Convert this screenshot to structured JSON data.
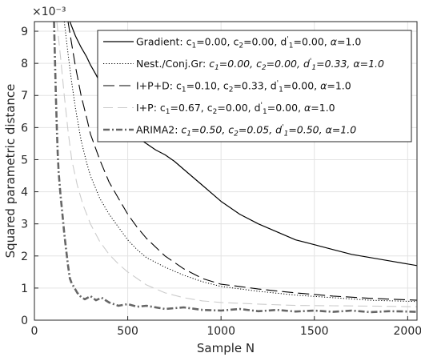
{
  "chart_data": {
    "type": "line",
    "title": "",
    "xlabel": "Sample N",
    "ylabel": "Squared parametric distance",
    "y_exponent_label": "×10⁻³",
    "xlim": [
      0,
      2050
    ],
    "ylim": [
      0,
      9.3
    ],
    "xticks": [
      0,
      500,
      1000,
      1500,
      2000
    ],
    "yticks": [
      0,
      1,
      2,
      3,
      4,
      5,
      6,
      7,
      8,
      9
    ],
    "grid": true,
    "legend_position": "top-right",
    "series": [
      {
        "name": "Gradient: c₁=0.00, c₂=0.00, d′₁=0.00, α=1.0",
        "legend": [
          {
            "t": "Gradient: c"
          },
          {
            "t": "1",
            "s": "sub"
          },
          {
            "t": "=0.00, c"
          },
          {
            "t": "2",
            "s": "sub"
          },
          {
            "t": "=0.00, d"
          },
          {
            "t": "'",
            "s": "sup"
          },
          {
            "t": "1",
            "s": "sub"
          },
          {
            "t": "=0.00, "
          },
          {
            "t": "α",
            "i": true
          },
          {
            "t": "=1.0"
          }
        ],
        "style": "solid",
        "color": "#000000",
        "width": 1.2,
        "x": [
          190,
          220,
          250,
          280,
          300,
          330,
          360,
          400,
          450,
          500,
          550,
          600,
          650,
          700,
          750,
          800,
          900,
          1000,
          1100,
          1200,
          1300,
          1400,
          1500,
          1600,
          1700,
          1800,
          1900,
          2050
        ],
        "y": [
          9.3,
          8.85,
          8.5,
          8.2,
          7.95,
          7.65,
          7.3,
          6.9,
          6.4,
          6.0,
          5.7,
          5.5,
          5.3,
          5.15,
          4.95,
          4.7,
          4.2,
          3.7,
          3.3,
          3.0,
          2.75,
          2.5,
          2.35,
          2.2,
          2.05,
          1.95,
          1.85,
          1.7
        ]
      },
      {
        "name": "Nest./Conj.Gr: c₁=0.00, c₂=0.00, d′₁=0.33, α=1.0",
        "legend": [
          {
            "t": "Nest./Conj.Gr: "
          },
          {
            "t": "c",
            "i": true
          },
          {
            "t": "1",
            "s": "sub",
            "i": true
          },
          {
            "t": "=0.00, ",
            "i": true
          },
          {
            "t": "c",
            "i": true
          },
          {
            "t": "2",
            "s": "sub",
            "i": true
          },
          {
            "t": "=0.00, ",
            "i": true
          },
          {
            "t": "d",
            "i": true
          },
          {
            "t": "'",
            "s": "sup",
            "i": true
          },
          {
            "t": "1",
            "s": "sub",
            "i": true
          },
          {
            "t": "=0.33, ",
            "i": true
          },
          {
            "t": "α",
            "i": true
          },
          {
            "t": "=1.0",
            "i": true
          }
        ],
        "style": "dotted",
        "color": "#000000",
        "width": 1.0,
        "x": [
          160,
          180,
          200,
          220,
          250,
          280,
          300,
          350,
          400,
          450,
          500,
          550,
          600,
          700,
          800,
          900,
          1000,
          1200,
          1400,
          1600,
          1800,
          2050
        ],
        "y": [
          9.3,
          8.3,
          7.4,
          6.6,
          5.6,
          4.9,
          4.5,
          3.8,
          3.3,
          2.9,
          2.5,
          2.2,
          1.95,
          1.65,
          1.4,
          1.2,
          1.05,
          0.9,
          0.78,
          0.7,
          0.62,
          0.58
        ]
      },
      {
        "name": "I+P+D: c₁=0.10, c₂=0.33, d′₁=0.00, α=1.0",
        "legend": [
          {
            "t": "I+P+D: c"
          },
          {
            "t": "1",
            "s": "sub"
          },
          {
            "t": "=0.10, c"
          },
          {
            "t": "2",
            "s": "sub"
          },
          {
            "t": "=0.33, d"
          },
          {
            "t": "'",
            "s": "sup"
          },
          {
            "t": "1",
            "s": "sub"
          },
          {
            "t": "=0.00, "
          },
          {
            "t": "α",
            "i": true
          },
          {
            "t": "=1.0"
          }
        ],
        "style": "dashed",
        "color": "#000000",
        "width": 1.1,
        "x": [
          180,
          200,
          220,
          250,
          280,
          300,
          350,
          400,
          450,
          500,
          550,
          600,
          700,
          800,
          900,
          1000,
          1100,
          1200,
          1400,
          1600,
          1800,
          2050
        ],
        "y": [
          9.3,
          8.6,
          7.9,
          7.0,
          6.3,
          5.8,
          5.0,
          4.3,
          3.8,
          3.3,
          2.9,
          2.55,
          2.0,
          1.6,
          1.3,
          1.12,
          1.05,
          0.97,
          0.85,
          0.75,
          0.68,
          0.62
        ]
      },
      {
        "name": "I+P: c₁=0.67, c₂=0.00, d′₁=0.00, α=1.0",
        "legend": [
          {
            "t": "I+P: c"
          },
          {
            "t": "1",
            "s": "sub"
          },
          {
            "t": "=0.67, c"
          },
          {
            "t": "2",
            "s": "sub"
          },
          {
            "t": "=0.00, d"
          },
          {
            "t": "'",
            "s": "sup"
          },
          {
            "t": "1",
            "s": "sub"
          },
          {
            "t": "=0.00, "
          },
          {
            "t": "α",
            "i": true
          },
          {
            "t": "=1.0"
          }
        ],
        "style": "dashed-light",
        "color": "#cccccc",
        "width": 1.1,
        "x": [
          120,
          140,
          160,
          180,
          200,
          230,
          260,
          300,
          350,
          400,
          450,
          500,
          600,
          700,
          800,
          900,
          1000,
          1200,
          1400,
          1600,
          1800,
          2050
        ],
        "y": [
          9.3,
          8.2,
          7.0,
          5.9,
          5.0,
          4.2,
          3.6,
          3.0,
          2.45,
          2.05,
          1.75,
          1.5,
          1.1,
          0.85,
          0.7,
          0.6,
          0.55,
          0.5,
          0.46,
          0.45,
          0.44,
          0.42
        ]
      },
      {
        "name": "ARIMA2: c₁=0.50, c₂=0.05, d′₁=0.50, α=1.0",
        "legend": [
          {
            "t": "ARIMA2: "
          },
          {
            "t": "c",
            "i": true
          },
          {
            "t": "1",
            "s": "sub",
            "i": true
          },
          {
            "t": "=0.50, ",
            "i": true
          },
          {
            "t": "c",
            "i": true
          },
          {
            "t": "2",
            "s": "sub",
            "i": true
          },
          {
            "t": "=0.05, ",
            "i": true
          },
          {
            "t": "d",
            "i": true
          },
          {
            "t": "'",
            "s": "sup",
            "i": true
          },
          {
            "t": "1",
            "s": "sub",
            "i": true
          },
          {
            "t": "=0.50, ",
            "i": true
          },
          {
            "t": "α",
            "i": true
          },
          {
            "t": "=1.0",
            "i": true
          }
        ],
        "style": "dashdot-thick",
        "color": "#666666",
        "width": 2.6,
        "x": [
          105,
          110,
          115,
          120,
          125,
          130,
          140,
          150,
          160,
          170,
          180,
          190,
          200,
          210,
          220,
          230,
          250,
          270,
          300,
          330,
          360,
          400,
          450,
          500,
          550,
          600,
          700,
          800,
          900,
          1000,
          1100,
          1200,
          1300,
          1400,
          1500,
          1600,
          1700,
          1800,
          1900,
          2000,
          2050
        ],
        "y": [
          9.3,
          8.2,
          7.0,
          6.0,
          5.2,
          4.6,
          3.9,
          3.3,
          2.7,
          2.2,
          1.7,
          1.3,
          1.15,
          1.05,
          0.95,
          0.85,
          0.72,
          0.65,
          0.75,
          0.62,
          0.7,
          0.55,
          0.45,
          0.5,
          0.42,
          0.45,
          0.35,
          0.4,
          0.32,
          0.3,
          0.35,
          0.28,
          0.32,
          0.27,
          0.3,
          0.26,
          0.3,
          0.25,
          0.28,
          0.27,
          0.26
        ]
      }
    ]
  }
}
